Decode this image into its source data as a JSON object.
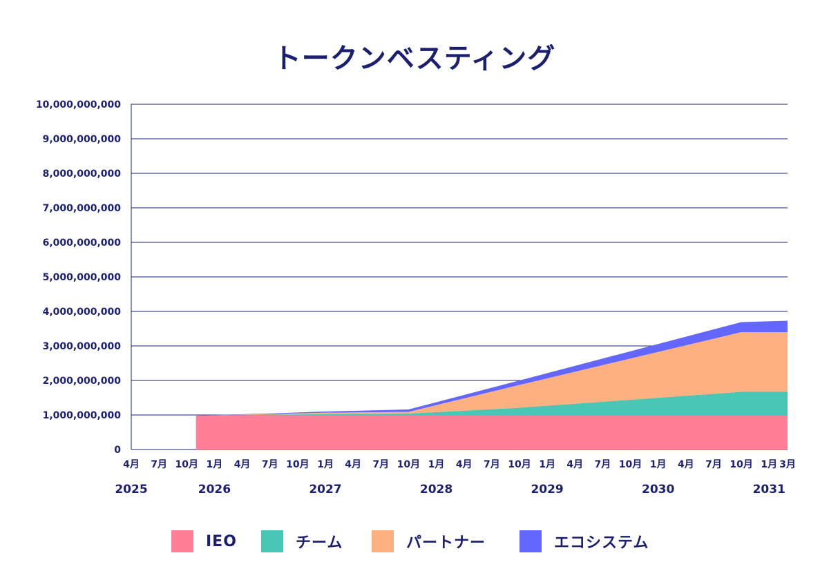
{
  "chart_data": {
    "type": "area",
    "stacked": true,
    "title": "トークンベスティング",
    "xlabel": "",
    "ylabel": "",
    "ylim": [
      0,
      10000000000
    ],
    "yticks": [
      0,
      1000000000,
      2000000000,
      3000000000,
      4000000000,
      5000000000,
      6000000000,
      7000000000,
      8000000000,
      9000000000,
      10000000000
    ],
    "ytick_labels": [
      "0",
      "1,000,000,000",
      "2,000,000,000",
      "3,000,000,000",
      "4,000,000,000",
      "5,000,000,000",
      "6,000,000,000",
      "7,000,000,000",
      "8,000,000,000",
      "9,000,000,000",
      "10,000,000,000"
    ],
    "xlim": [
      "2025-04",
      "2031-03"
    ],
    "month_ticks": [
      {
        "date": "2025-04",
        "label": "4月"
      },
      {
        "date": "2025-07",
        "label": "7月"
      },
      {
        "date": "2025-10",
        "label": "10月"
      },
      {
        "date": "2026-01",
        "label": "1月"
      },
      {
        "date": "2026-04",
        "label": "4月"
      },
      {
        "date": "2026-07",
        "label": "7月"
      },
      {
        "date": "2026-10",
        "label": "10月"
      },
      {
        "date": "2027-01",
        "label": "1月"
      },
      {
        "date": "2027-04",
        "label": "4月"
      },
      {
        "date": "2027-07",
        "label": "7月"
      },
      {
        "date": "2027-10",
        "label": "10月"
      },
      {
        "date": "2028-01",
        "label": "1月"
      },
      {
        "date": "2028-04",
        "label": "4月"
      },
      {
        "date": "2028-07",
        "label": "7月"
      },
      {
        "date": "2028-10",
        "label": "10月"
      },
      {
        "date": "2029-01",
        "label": "1月"
      },
      {
        "date": "2029-04",
        "label": "4月"
      },
      {
        "date": "2029-07",
        "label": "7月"
      },
      {
        "date": "2029-10",
        "label": "10月"
      },
      {
        "date": "2030-01",
        "label": "1月"
      },
      {
        "date": "2030-04",
        "label": "4月"
      },
      {
        "date": "2030-07",
        "label": "7月"
      },
      {
        "date": "2030-10",
        "label": "10月"
      },
      {
        "date": "2031-01",
        "label": "1月"
      },
      {
        "date": "2031-03",
        "label": "3月"
      }
    ],
    "year_ticks": [
      {
        "date": "2025-04",
        "label": "2025"
      },
      {
        "date": "2026-01",
        "label": "2026"
      },
      {
        "date": "2027-01",
        "label": "2027"
      },
      {
        "date": "2028-01",
        "label": "2028"
      },
      {
        "date": "2029-01",
        "label": "2029"
      },
      {
        "date": "2030-01",
        "label": "2030"
      },
      {
        "date": "2031-01",
        "label": "2031"
      }
    ],
    "x": [
      "2025-11",
      "2026-01",
      "2026-07",
      "2027-01",
      "2027-10",
      "2028-10",
      "2030-10",
      "2031-03"
    ],
    "series": [
      {
        "name": "IEO",
        "color": "#ff8096",
        "values": [
          980000000,
          980000000,
          980000000,
          980000000,
          980000000,
          980000000,
          980000000,
          980000000
        ]
      },
      {
        "name": "チーム",
        "color": "#4ac6b4",
        "values": [
          0,
          10000000,
          25000000,
          45000000,
          60000000,
          230000000,
          690000000,
          690000000
        ]
      },
      {
        "name": "パートナー",
        "color": "#ffb081",
        "values": [
          0,
          5000000,
          25000000,
          40000000,
          50000000,
          660000000,
          1730000000,
          1730000000
        ]
      },
      {
        "name": "エコシステム",
        "color": "#6366ff",
        "values": [
          0,
          5000000,
          15000000,
          35000000,
          70000000,
          130000000,
          290000000,
          330000000
        ]
      }
    ],
    "grid": true,
    "legend_position": "bottom"
  }
}
